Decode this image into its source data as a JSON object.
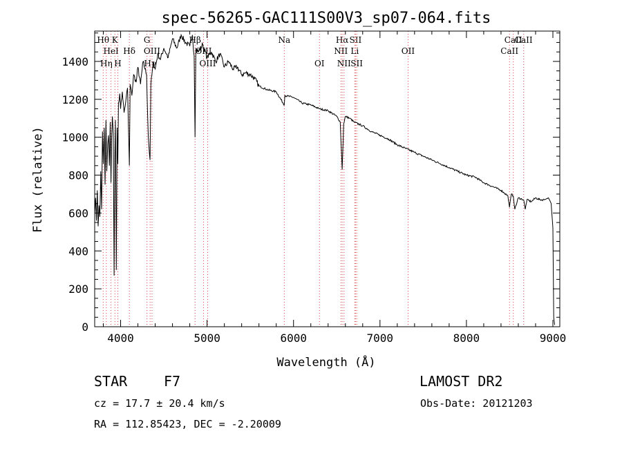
{
  "chart_data": {
    "type": "line",
    "title": "spec-56265-GAC111S00V3_sp07-064.fits",
    "xlabel": "Wavelength (Å)",
    "ylabel": "Flux (relative)",
    "xlim": [
      3700,
      9080
    ],
    "ylim": [
      0,
      1560
    ],
    "xticks": [
      4000,
      5000,
      6000,
      7000,
      8000,
      9000
    ],
    "yticks": [
      0,
      200,
      400,
      600,
      800,
      1000,
      1200,
      1400
    ],
    "series": [
      {
        "x": [
          3700,
          3710,
          3720,
          3730,
          3740,
          3750,
          3760,
          3770,
          3780,
          3790,
          3800,
          3810,
          3820,
          3830,
          3840,
          3850,
          3860,
          3870,
          3880,
          3889,
          3895,
          3905,
          3915,
          3925,
          3933,
          3940,
          3950,
          3960,
          3968,
          3975,
          3990,
          4000,
          4020,
          4040,
          4060,
          4080,
          4101,
          4110,
          4130,
          4150,
          4180,
          4200,
          4230,
          4260,
          4300,
          4320,
          4340,
          4350,
          4380,
          4400,
          4430,
          4460,
          4500,
          4550,
          4600,
          4650,
          4700,
          4750,
          4800,
          4830,
          4850,
          4861,
          4870,
          4900,
          4950,
          5000,
          5050,
          5100,
          5150,
          5200,
          5250,
          5300,
          5350,
          5400,
          5450,
          5500,
          5550,
          5600,
          5700,
          5800,
          5893,
          5900,
          6000,
          6100,
          6200,
          6300,
          6400,
          6500,
          6540,
          6563,
          6580,
          6600,
          6650,
          6700,
          6800,
          6900,
          7000,
          7100,
          7200,
          7300,
          7400,
          7500,
          7600,
          7700,
          7800,
          7900,
          8000,
          8100,
          8200,
          8300,
          8400,
          8480,
          8498,
          8520,
          8542,
          8560,
          8600,
          8662,
          8680,
          8700,
          8750,
          8800,
          8850,
          8900,
          8950,
          8980,
          9000,
          9010,
          9020
        ],
        "y": [
          600,
          680,
          560,
          720,
          530,
          640,
          580,
          820,
          620,
          1030,
          860,
          1050,
          750,
          1090,
          820,
          960,
          1010,
          850,
          1080,
          760,
          980,
          1110,
          1020,
          270,
          880,
          1090,
          300,
          1050,
          860,
          1180,
          1230,
          1150,
          1240,
          1130,
          1190,
          1260,
          850,
          1280,
          1220,
          1330,
          1290,
          1370,
          1280,
          1400,
          1330,
          1000,
          880,
          1280,
          1400,
          1360,
          1440,
          1410,
          1470,
          1420,
          1520,
          1470,
          1540,
          1500,
          1480,
          1540,
          1430,
          1000,
          1470,
          1450,
          1490,
          1420,
          1450,
          1400,
          1440,
          1370,
          1400,
          1360,
          1370,
          1330,
          1340,
          1330,
          1310,
          1270,
          1250,
          1240,
          1170,
          1220,
          1210,
          1180,
          1170,
          1150,
          1140,
          1110,
          1080,
          830,
          1070,
          1110,
          1100,
          1080,
          1060,
          1030,
          1010,
          990,
          960,
          940,
          920,
          900,
          880,
          860,
          840,
          820,
          800,
          790,
          760,
          740,
          720,
          690,
          630,
          700,
          690,
          620,
          680,
          670,
          620,
          670,
          660,
          680,
          670,
          670,
          680,
          650,
          520,
          50,
          10
        ]
      }
    ],
    "line_markers": [
      {
        "label": "Hθ",
        "wave": 3798,
        "row": 1
      },
      {
        "label": "K",
        "wave": 3934,
        "row": 1
      },
      {
        "label": "HeI",
        "wave": 3889,
        "row": 2
      },
      {
        "label": "Hδ",
        "wave": 4101,
        "row": 2
      },
      {
        "label": "Hη",
        "wave": 3835,
        "row": 3
      },
      {
        "label": "H",
        "wave": 3968,
        "row": 3
      },
      {
        "label": "G",
        "wave": 4305,
        "row": 1
      },
      {
        "label": "OIII",
        "wave": 4363,
        "row": 2
      },
      {
        "label": "Hγ",
        "wave": 4341,
        "row": 3
      },
      {
        "label": "Hβ",
        "wave": 4861,
        "row": 1
      },
      {
        "label": "OIII",
        "wave": 4959,
        "row": 2
      },
      {
        "label": "OIII",
        "wave": 5007,
        "row": 3
      },
      {
        "label": "Na",
        "wave": 5893,
        "row": 1
      },
      {
        "label": "OI",
        "wave": 6300,
        "row": 3
      },
      {
        "label": "Hα",
        "wave": 6563,
        "row": 1
      },
      {
        "label": "SII",
        "wave": 6717,
        "row": 1
      },
      {
        "label": "NII",
        "wave": 6548,
        "row": 2
      },
      {
        "label": "Li",
        "wave": 6708,
        "row": 2
      },
      {
        "label": "NII",
        "wave": 6584,
        "row": 3
      },
      {
        "label": "SII",
        "wave": 6731,
        "row": 3
      },
      {
        "label": "OII",
        "wave": 7325,
        "row": 2
      },
      {
        "label": "CaII",
        "wave": 8542,
        "row": 1
      },
      {
        "label": "CaII",
        "wave": 8498,
        "row": 2
      },
      {
        "label": "CaII",
        "wave": 8662,
        "row": 1
      }
    ]
  },
  "info": {
    "object_class": "STAR",
    "subclass": "F7",
    "survey": "LAMOST DR2",
    "cz": "cz = 17.7 ± 20.4 km/s",
    "obs_date": "Obs-Date: 20121203",
    "coords": "RA = 112.85423, DEC =  -2.20009"
  }
}
